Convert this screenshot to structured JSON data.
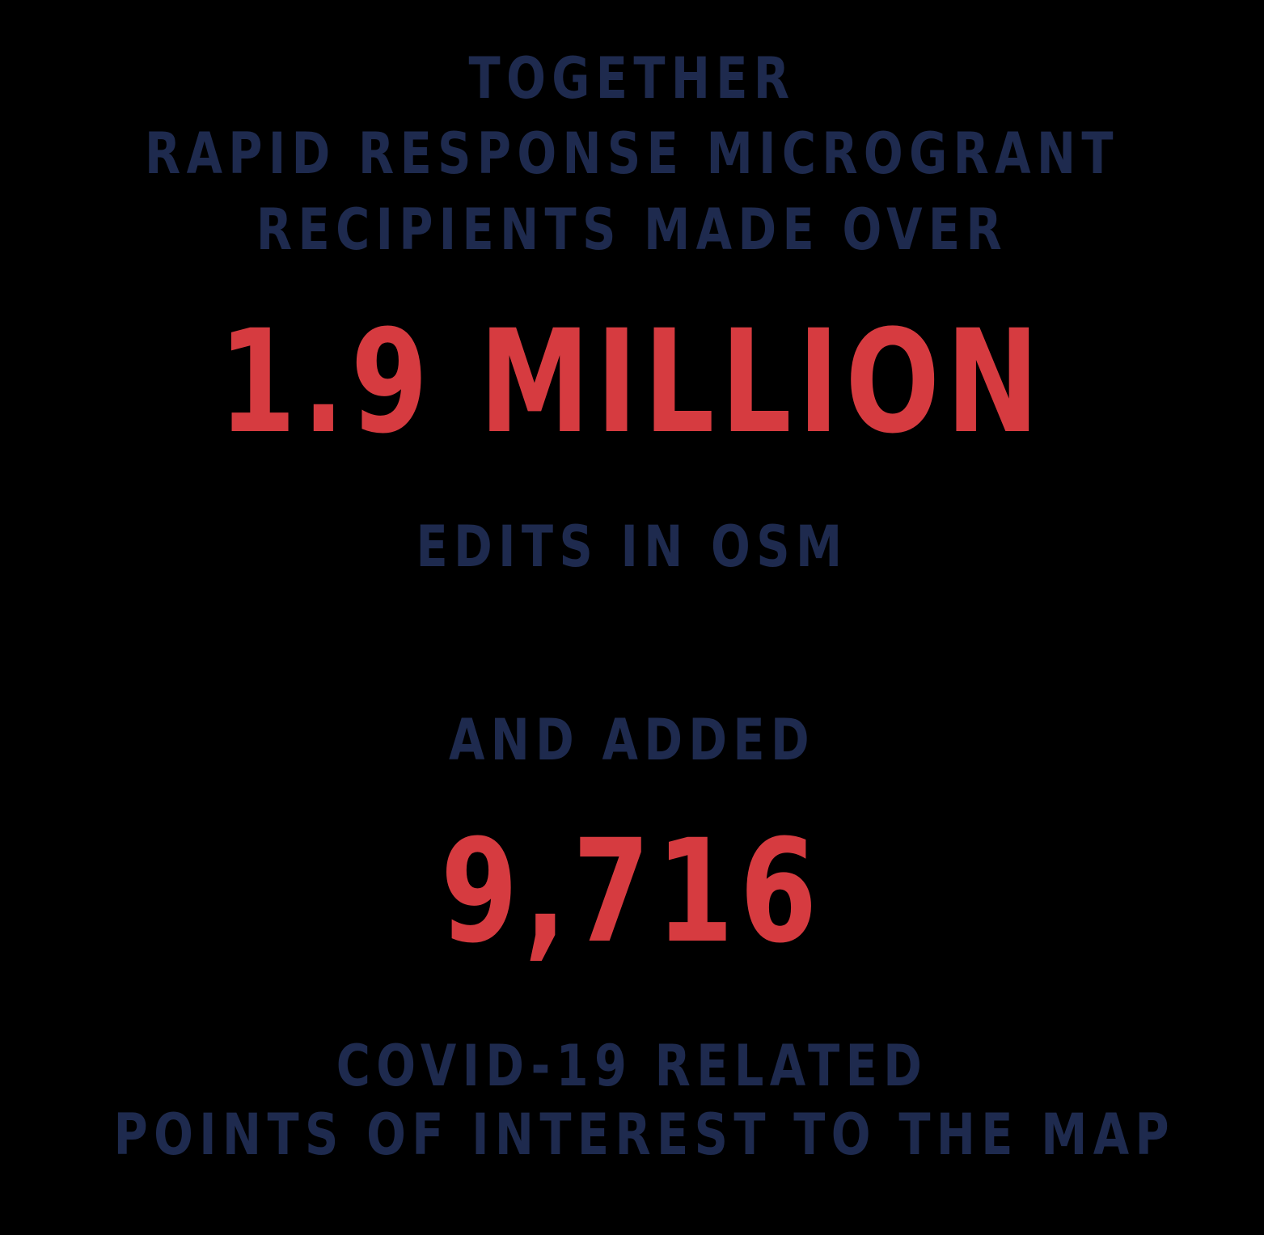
{
  "colors": {
    "background": "#000000",
    "navy_text": "#1e2a4e",
    "red_highlight": "#d63b40"
  },
  "intro": {
    "line1": "TOGETHER",
    "line2": "RAPID RESPONSE MICROGRANT",
    "line3": "RECIPIENTS MADE OVER"
  },
  "stat_edits": {
    "value": "1.9 MILLION",
    "label": "EDITS IN OSM"
  },
  "connector": "AND ADDED",
  "stat_poi": {
    "value": "9,716",
    "label_line1": "COVID-19 RELATED",
    "label_line2": "POINTS OF INTEREST TO THE MAP"
  }
}
